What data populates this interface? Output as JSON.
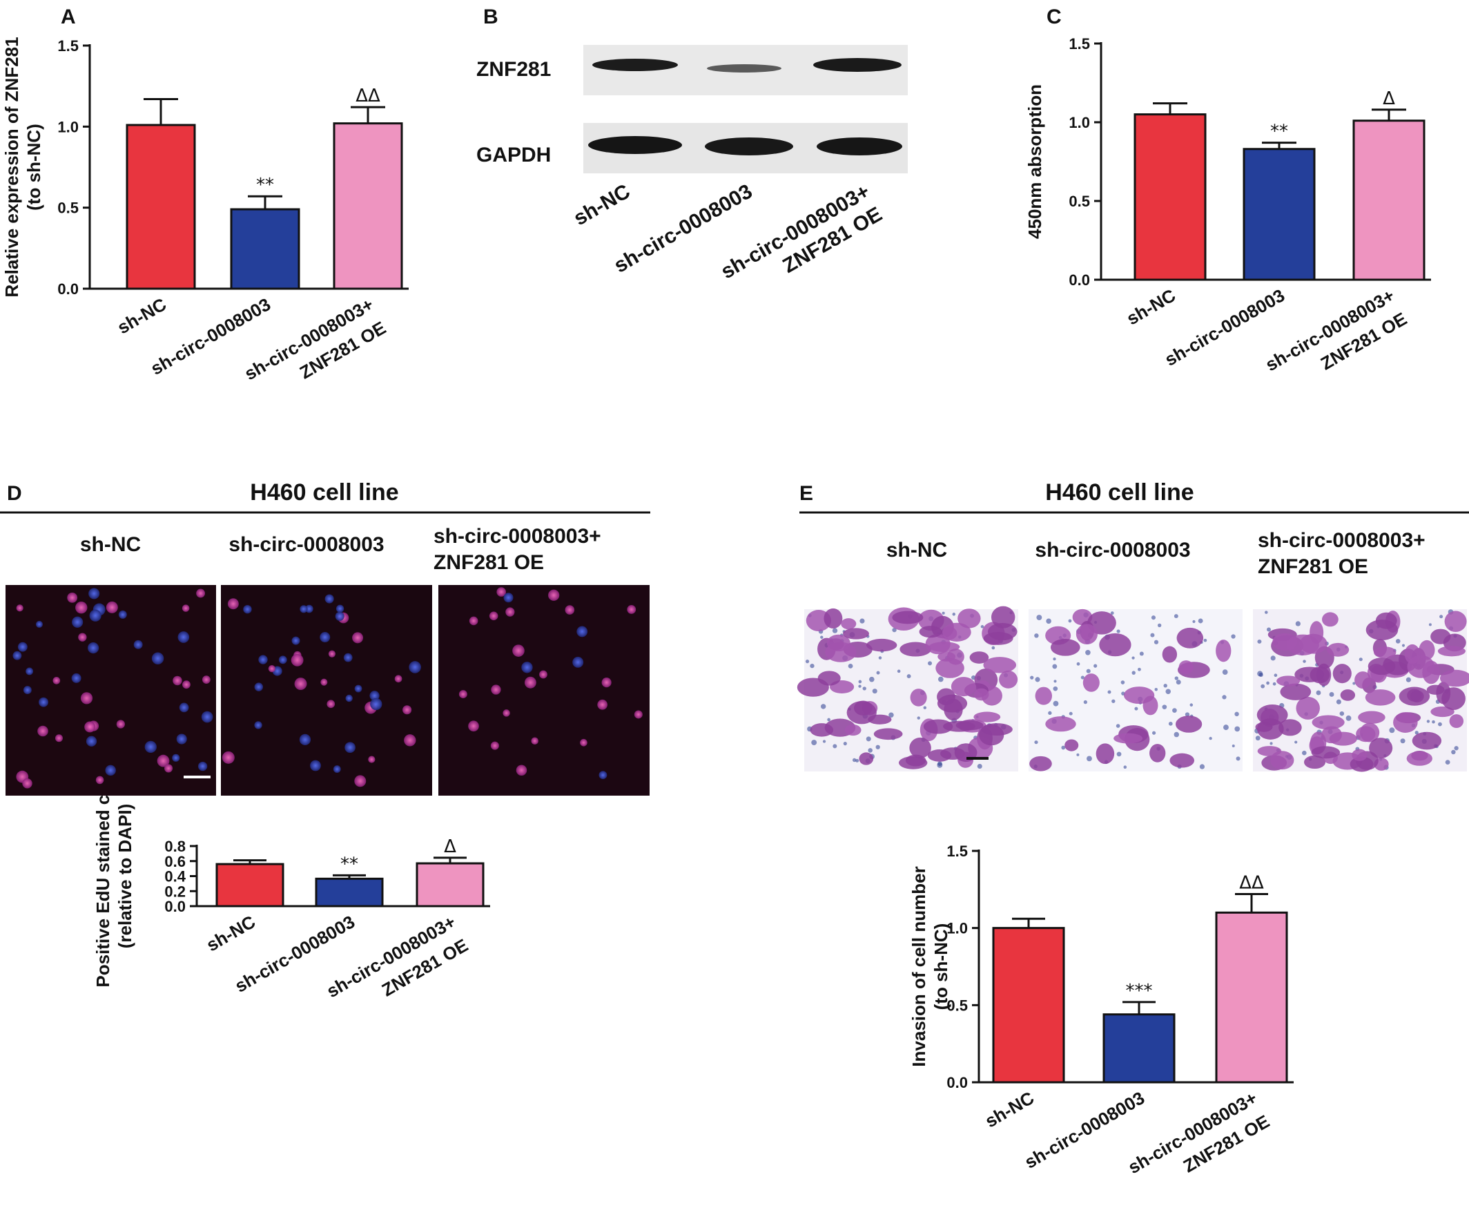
{
  "panels": {
    "A": {
      "letter": "A"
    },
    "B": {
      "letter": "B",
      "bands": [
        "ZNF281",
        "GAPDH"
      ],
      "lanes": [
        "sh-NC",
        "sh-circ-0008003",
        "sh-circ-0008003+",
        "ZNF281 OE"
      ]
    },
    "C": {
      "letter": "C"
    },
    "D": {
      "letter": "D",
      "header": "H460 cell line",
      "columns": [
        "sh-NC",
        "sh-circ-0008003",
        "sh-circ-0008003+",
        "ZNF281 OE"
      ]
    },
    "E": {
      "letter": "E",
      "header": "H460 cell line",
      "columns": [
        "sh-NC",
        "sh-circ-0008003",
        "sh-circ-0008003+",
        "ZNF281 OE"
      ]
    }
  },
  "colors": {
    "sh_nc": "#e8353f",
    "sh_circ": "#243f9a",
    "sh_circ_oe": "#ee94c0"
  },
  "chart_data": [
    {
      "id": "A",
      "type": "bar",
      "categories": [
        [
          "sh-NC"
        ],
        [
          "sh-circ-0008003"
        ],
        [
          "sh-circ-0008003+",
          "ZNF281 OE"
        ]
      ],
      "values": [
        1.01,
        0.49,
        1.02
      ],
      "errors": [
        0.16,
        0.08,
        0.1
      ],
      "annotations": [
        "",
        "**",
        "ΔΔ"
      ],
      "ylabel": [
        "Relative expression of ZNF281",
        "(to sh-NC)"
      ],
      "yticks": [
        "0.0",
        "0.5",
        "1.0",
        "1.5"
      ],
      "ylim": [
        0,
        1.5
      ]
    },
    {
      "id": "C",
      "type": "bar",
      "categories": [
        [
          "sh-NC"
        ],
        [
          "sh-circ-0008003"
        ],
        [
          "sh-circ-0008003+",
          "ZNF281 OE"
        ]
      ],
      "values": [
        1.05,
        0.83,
        1.01
      ],
      "errors": [
        0.07,
        0.04,
        0.07
      ],
      "annotations": [
        "",
        "**",
        "Δ"
      ],
      "ylabel": [
        "450nm absorption"
      ],
      "yticks": [
        "0.0",
        "0.5",
        "1.0",
        "1.5"
      ],
      "ylim": [
        0,
        1.5
      ]
    },
    {
      "id": "D",
      "type": "bar",
      "categories": [
        [
          "sh-NC"
        ],
        [
          "sh-circ-0008003"
        ],
        [
          "sh-circ-0008003+",
          "ZNF281 OE"
        ]
      ],
      "values": [
        0.56,
        0.365,
        0.57
      ],
      "errors": [
        0.05,
        0.045,
        0.075
      ],
      "annotations": [
        "",
        "**",
        "Δ"
      ],
      "ylabel": [
        "Positive EdU stained cells",
        "(relative to DAPI)"
      ],
      "yticks": [
        "0.0",
        "0.2",
        "0.4",
        "0.6",
        "0.8"
      ],
      "ylim": [
        0,
        0.8
      ]
    },
    {
      "id": "E",
      "type": "bar",
      "categories": [
        [
          "sh-NC"
        ],
        [
          "sh-circ-0008003"
        ],
        [
          "sh-circ-0008003+",
          "ZNF281 OE"
        ]
      ],
      "values": [
        1.0,
        0.44,
        1.1
      ],
      "errors": [
        0.06,
        0.08,
        0.12
      ],
      "annotations": [
        "",
        "***",
        "ΔΔ"
      ],
      "ylabel": [
        "Invasion of cell number",
        "(to sh-NC)"
      ],
      "yticks": [
        "0.0",
        "0.5",
        "1.0",
        "1.5"
      ],
      "ylim": [
        0,
        1.5
      ]
    }
  ]
}
